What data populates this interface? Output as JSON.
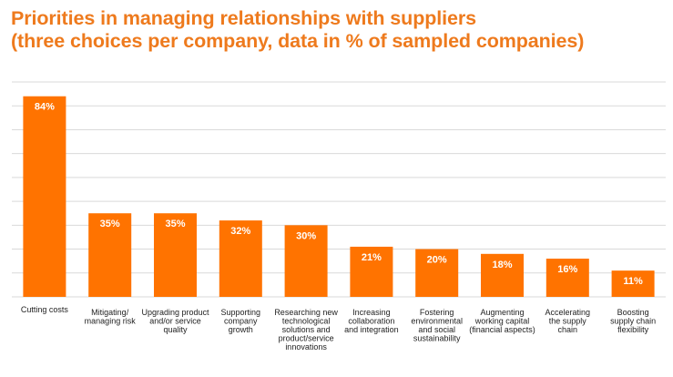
{
  "chart_data": {
    "type": "bar",
    "title": "Priorities in managing relationships with suppliers",
    "subtitle": "(three choices per company, data in % of sampled companies)",
    "categories": [
      "Cutting costs",
      "Mitigating/ managing risk",
      "Upgrading product and/or service quality",
      "Supporting company growth",
      "Researching new technological solutions and product/service innovations",
      "Increasing collaboration and integration",
      "Fostering environmental and social sustainability",
      "Augmenting working capital (financial aspects)",
      "Accelerating the supply chain",
      "Boosting supply chain flexibility"
    ],
    "category_lines": [
      [
        "Cutting costs"
      ],
      [
        "Mitigating/",
        "managing risk"
      ],
      [
        "Upgrading product",
        "and/or service",
        "quality"
      ],
      [
        "Supporting",
        "company",
        "growth"
      ],
      [
        "Researching new",
        "technological",
        "solutions and",
        "product/service",
        "innovations"
      ],
      [
        "Increasing",
        "collaboration",
        "and integration"
      ],
      [
        "Fostering",
        "environmental",
        "and social",
        "sustainability"
      ],
      [
        "Augmenting",
        "working capital",
        "(financial aspects)"
      ],
      [
        "Accelerating",
        "the supply",
        "chain"
      ],
      [
        "Boosting",
        "supply chain",
        "flexibility"
      ]
    ],
    "values": [
      84,
      35,
      35,
      32,
      30,
      21,
      20,
      18,
      16,
      11
    ],
    "value_labels": [
      "84%",
      "35%",
      "35%",
      "32%",
      "30%",
      "21%",
      "20%",
      "18%",
      "16%",
      "11%"
    ],
    "unit": "%",
    "ylim": [
      0,
      90
    ],
    "y_grid_step": 10,
    "grid": true,
    "legend": "none",
    "xlabel": "",
    "ylabel": "",
    "colors": {
      "bar": "#ff7300",
      "title": "#ee7a1d",
      "grid": "#d9d9d9"
    }
  }
}
